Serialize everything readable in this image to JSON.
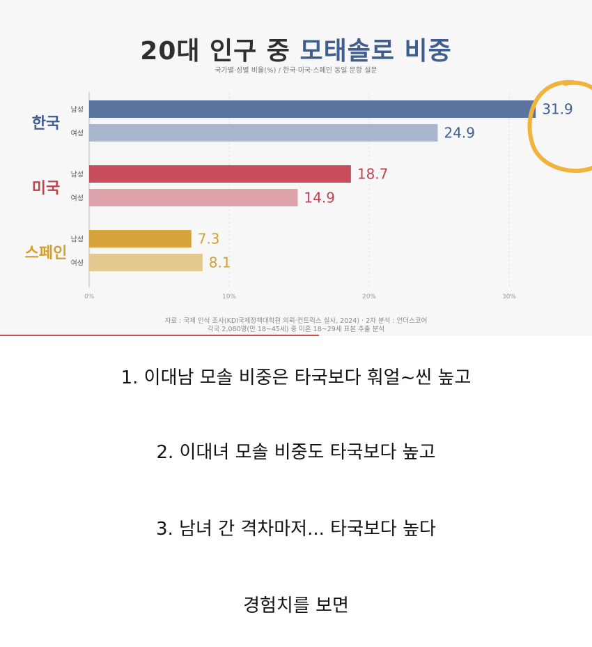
{
  "chart_data": {
    "type": "bar",
    "orientation": "horizontal",
    "title_main": "20대 인구 중 ",
    "title_accent": "모태솔로 비중",
    "subtitle": "국가별·성별 비율(%) / 한국·미국·스페인 동일 문항 설문",
    "xlim": [
      0,
      35
    ],
    "ticks": [
      {
        "value": 0,
        "label": "0%"
      },
      {
        "value": 10,
        "label": "10%"
      },
      {
        "value": 20,
        "label": "20%"
      },
      {
        "value": 30,
        "label": "30%"
      }
    ],
    "groups": [
      {
        "country": "한국",
        "color": "#3f5d8f",
        "bars": [
          {
            "gender": "남성",
            "value": 31.9,
            "label": "31.9",
            "color": "#5a739f"
          },
          {
            "gender": "여성",
            "value": 24.9,
            "label": "24.9",
            "color": "#a9b6cc"
          }
        ]
      },
      {
        "country": "미국",
        "color": "#c0424f",
        "bars": [
          {
            "gender": "남성",
            "value": 18.7,
            "label": "18.7",
            "color": "#c94e5c"
          },
          {
            "gender": "여성",
            "value": 14.9,
            "label": "14.9",
            "color": "#dfa3ab"
          }
        ]
      },
      {
        "country": "스페인",
        "color": "#d1a032",
        "bars": [
          {
            "gender": "남성",
            "value": 7.3,
            "label": "7.3",
            "color": "#d6a43b"
          },
          {
            "gender": "여성",
            "value": 8.1,
            "label": "8.1",
            "color": "#e4c890"
          }
        ]
      }
    ],
    "highlight_color": "#f0b43c",
    "source_lines": [
      "자료 : 국제 인식 조사(KDI국제정책대학원 의뢰·컨트릭스 실사, 2024) · 2차 분석 : 언더스코어",
      "각국 2,080명(만 18~45세) 중 미혼 18~29세 표본 추출 분석"
    ]
  },
  "captions": [
    "1. 이대남 모솔 비중은 타국보다 훠얼~씬 높고",
    "2. 이대녀 모솔 비중도 타국보다 높고",
    "3. 남녀 간 격차마저... 타국보다 높다",
    "경험치를 보면"
  ]
}
